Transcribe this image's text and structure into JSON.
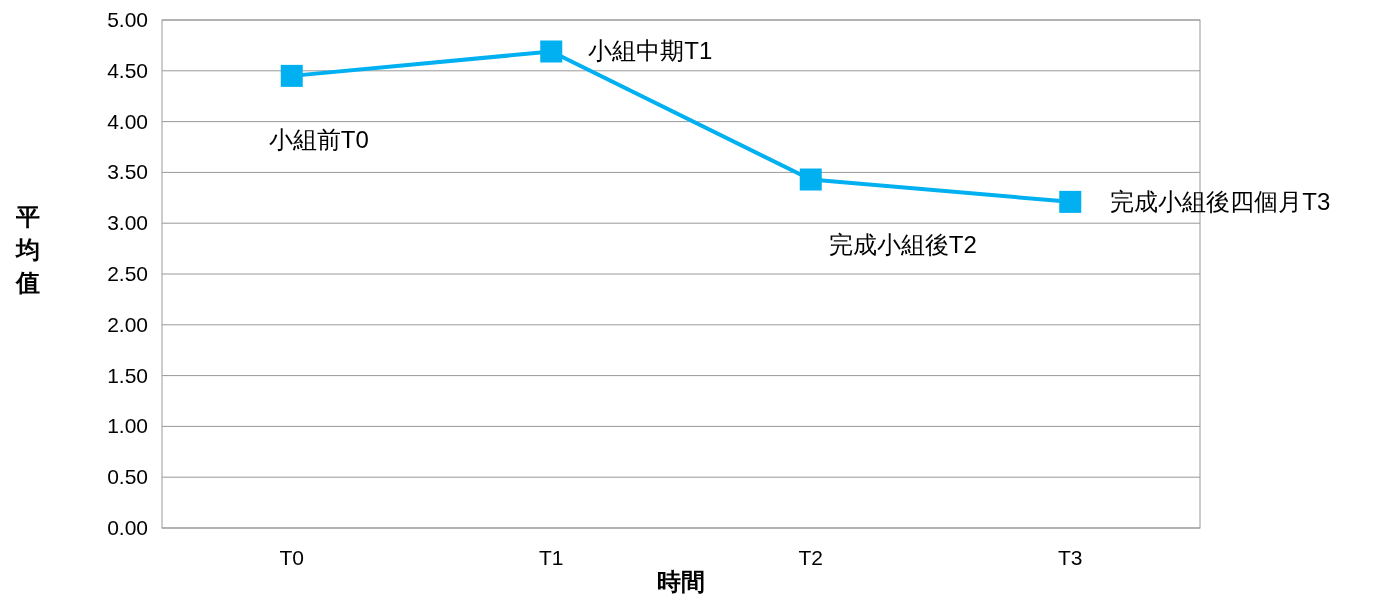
{
  "chart_data": {
    "type": "line",
    "xlabel": "時間",
    "ylabel": "平均值",
    "categories": [
      "T0",
      "T1",
      "T2",
      "T3"
    ],
    "series": [
      {
        "color": "#00b0f0",
        "values": [
          4.45,
          4.69,
          3.43,
          3.21
        ]
      }
    ],
    "ylim": [
      0,
      5
    ],
    "yticks": [
      {
        "value": 0,
        "label": "0.00"
      },
      {
        "value": 0.5,
        "label": "0.50"
      },
      {
        "value": 1,
        "label": "1.00"
      },
      {
        "value": 1.5,
        "label": "1.50"
      },
      {
        "value": 2,
        "label": "2.00"
      },
      {
        "value": 2.5,
        "label": "2.50"
      },
      {
        "value": 3,
        "label": "3.00"
      },
      {
        "value": 3.5,
        "label": "3.50"
      },
      {
        "value": 4,
        "label": "4.00"
      },
      {
        "value": 4.5,
        "label": "4.50"
      },
      {
        "value": 5,
        "label": "5.00"
      }
    ],
    "grid": "y",
    "marker": "square",
    "line_style": "solid",
    "annotations": [
      {
        "text": "小組前T0",
        "x": "T0",
        "y": 4.45
      },
      {
        "text": "小組中期T1",
        "x": "T1",
        "y": 4.69
      },
      {
        "text": "完成小組後T2",
        "x": "T2",
        "y": 3.43
      },
      {
        "text": "完成小組後四個月T3",
        "x": "T3",
        "y": 3.21
      }
    ]
  }
}
